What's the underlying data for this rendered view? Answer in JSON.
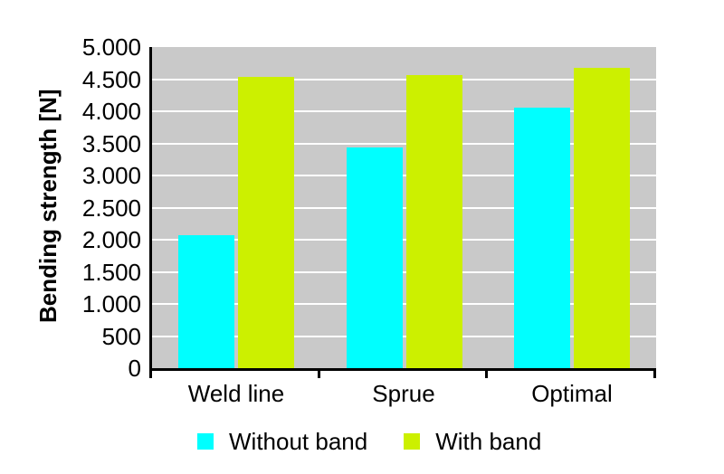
{
  "page": {
    "background": "#FFFFFF"
  },
  "chart_data": {
    "type": "bar",
    "title": "",
    "xlabel": "",
    "ylabel": "Bending strength [N]",
    "categories": [
      "Weld line",
      "Sprue",
      "Optimal"
    ],
    "series": [
      {
        "name": "Without band",
        "color": "#00FFFF",
        "values": [
          2070,
          3440,
          4050
        ]
      },
      {
        "name": "With band",
        "color": "#CCF000",
        "values": [
          4530,
          4570,
          4680
        ]
      }
    ],
    "ylim": [
      0,
      5000
    ],
    "ytick_interval": 500,
    "ytick_labels_bottom_to_top": [
      "0",
      "500",
      "1.000",
      "1.500",
      "2.000",
      "2.500",
      "3.000",
      "3.500",
      "4.000",
      "4.500",
      "5.000"
    ],
    "grid": "horizontal",
    "gridline_color": "#FFFFFF",
    "plot_background": "#C9C9C9",
    "axis_color": "#000000",
    "text_color": "#000000",
    "legend_position": "bottom"
  }
}
